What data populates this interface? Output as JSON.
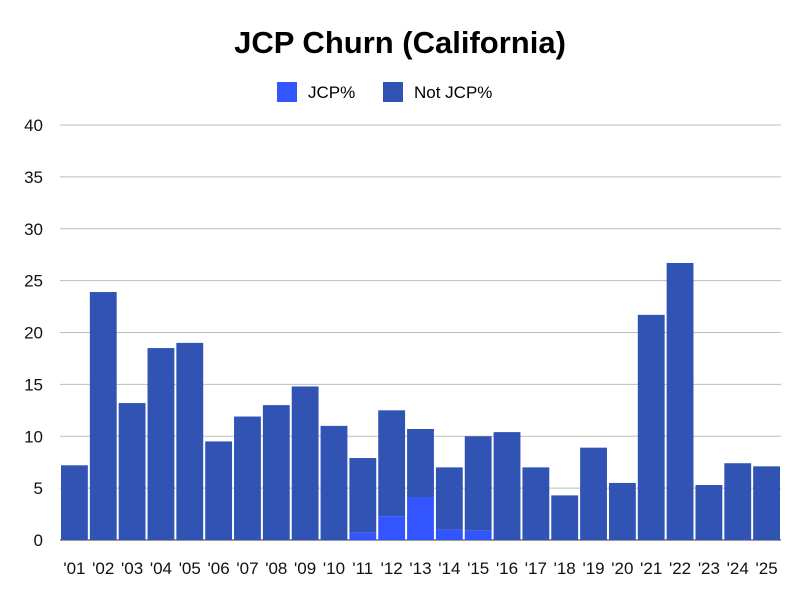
{
  "chart_data": {
    "type": "bar",
    "stacked": true,
    "title": "JCP Churn (California)",
    "xlabel": "",
    "ylabel": "",
    "ylim": [
      0,
      40
    ],
    "yticks": [
      0,
      5,
      10,
      15,
      20,
      25,
      30,
      35,
      40
    ],
    "grid": true,
    "legend_position": "top",
    "categories": [
      "'01",
      "'02",
      "'03",
      "'04",
      "'05",
      "'06",
      "'07",
      "'08",
      "'09",
      "'10",
      "'11",
      "'12",
      "'13",
      "'14",
      "'15",
      "'16",
      "'17",
      "'18",
      "'19",
      "'20",
      "'21",
      "'22",
      "'23",
      "'24",
      "'25"
    ],
    "series": [
      {
        "name": "JCP%",
        "color": "#3355ff",
        "values": [
          0,
          0,
          0,
          0,
          0,
          0,
          0,
          0,
          0,
          0,
          0.7,
          2.3,
          4.1,
          1.0,
          0.9,
          0,
          0,
          0,
          0,
          0,
          0,
          0,
          0,
          0,
          0
        ]
      },
      {
        "name": "Not JCP%",
        "color": "#3153b3",
        "values": [
          7.2,
          23.9,
          13.2,
          18.5,
          19.0,
          9.5,
          11.9,
          13.0,
          14.8,
          11.0,
          7.2,
          10.2,
          6.6,
          6.0,
          9.1,
          10.4,
          7.0,
          4.3,
          8.9,
          5.5,
          21.7,
          26.7,
          5.3,
          7.4,
          7.1
        ]
      }
    ]
  }
}
